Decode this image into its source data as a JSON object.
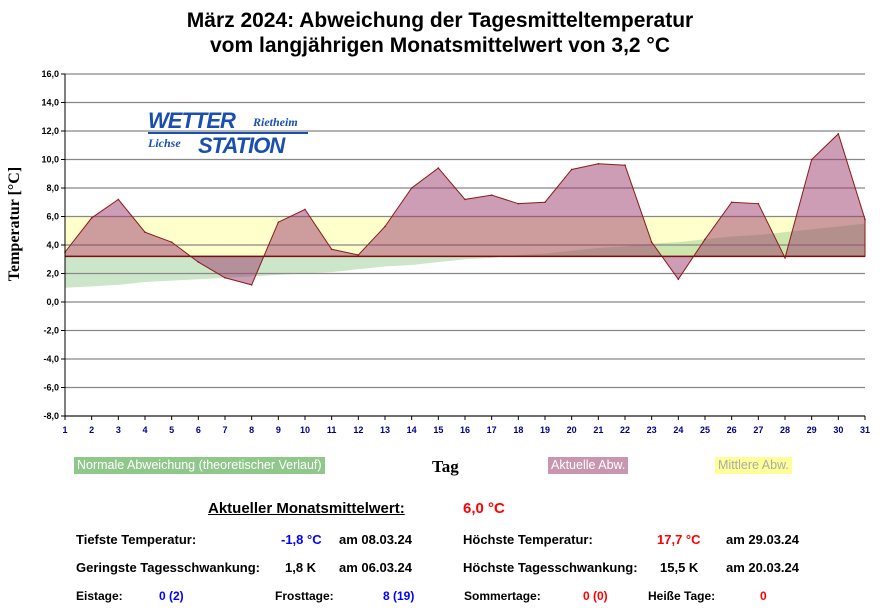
{
  "title_line1": "März 2024: Abweichung der Tagesmitteltemperatur",
  "title_line2": "vom langjährigen Monatsmittelwert von 3,2 °C",
  "logo": {
    "word1": "WETTER",
    "place1": "Rietheim",
    "place2": "Lichse",
    "word2": "STATION"
  },
  "chart_data": {
    "type": "area",
    "title": "März 2024: Abweichung der Tagesmitteltemperatur vom langjährigen Monatsmittelwert von 3,2 °C",
    "xlabel": "Tag",
    "ylabel": "Temperatur [°C]",
    "ylim": [
      -8,
      16
    ],
    "yticks": [
      "-8,0",
      "-6,0",
      "-4,0",
      "-2,0",
      "0,0",
      "2,0",
      "4,0",
      "6,0",
      "8,0",
      "10,0",
      "12,0",
      "14,0",
      "16,0"
    ],
    "ytick_values": [
      -8,
      -6,
      -4,
      -2,
      0,
      2,
      4,
      6,
      8,
      10,
      12,
      14,
      16
    ],
    "x": [
      1,
      2,
      3,
      4,
      5,
      6,
      7,
      8,
      9,
      10,
      11,
      12,
      13,
      14,
      15,
      16,
      17,
      18,
      19,
      20,
      21,
      22,
      23,
      24,
      25,
      26,
      27,
      28,
      29,
      30,
      31
    ],
    "grid": true,
    "baseline": 3.2,
    "series": [
      {
        "name": "Normale Abweichung (theoretischer Verlauf)",
        "color": "#8fc88a",
        "values": [
          1.0,
          1.1,
          1.2,
          1.4,
          1.5,
          1.6,
          1.7,
          1.8,
          1.9,
          2.0,
          2.1,
          2.3,
          2.5,
          2.6,
          2.8,
          3.0,
          3.1,
          3.3,
          3.4,
          3.6,
          3.8,
          3.9,
          4.1,
          4.2,
          4.4,
          4.6,
          4.7,
          4.9,
          5.1,
          5.3,
          5.5
        ]
      },
      {
        "name": "Aktuelle Abw.",
        "color": "#c996b0",
        "values": [
          3.5,
          5.9,
          7.2,
          4.9,
          4.2,
          2.8,
          1.7,
          1.2,
          5.6,
          6.5,
          3.7,
          3.3,
          5.3,
          8.0,
          9.4,
          7.2,
          7.5,
          6.9,
          7.0,
          9.3,
          9.7,
          9.6,
          4.2,
          1.6,
          4.4,
          7.0,
          6.9,
          3.1,
          10.0,
          11.8,
          5.8
        ]
      },
      {
        "name": "Mittlere Abw.",
        "color": "#ffff99",
        "value": 6.0
      }
    ]
  },
  "legend": {
    "normal": "Normale Abweichung (theoretischer Verlauf)",
    "actual": "Aktuelle Abw.",
    "mean": "Mittlere Abw."
  },
  "stats": {
    "monthly_mean_label": "Aktueller Monatsmittelwert:",
    "monthly_mean_value": "6,0 °C",
    "min_label": "Tiefste Temperatur:",
    "min_value": "-1,8 °C",
    "min_date": "am 08.03.24",
    "max_label": "Höchste Temperatur:",
    "max_value": "17,7 °C",
    "max_date": "am 29.03.24",
    "minrange_label": "Geringste Tagesschwankung:",
    "minrange_value": "1,8 K",
    "minrange_date": "am 06.03.24",
    "maxrange_label": "Höchste Tagesschwankung:",
    "maxrange_value": "15,5 K",
    "maxrange_date": "am 20.03.24",
    "ice_label": "Eistage:",
    "ice_value": "0 (2)",
    "frost_label": "Frosttage:",
    "frost_value": "8 (19)",
    "summer_label": "Sommertage:",
    "summer_value": "0 (0)",
    "hot_label": "Heiße Tage:",
    "hot_value": "0"
  }
}
